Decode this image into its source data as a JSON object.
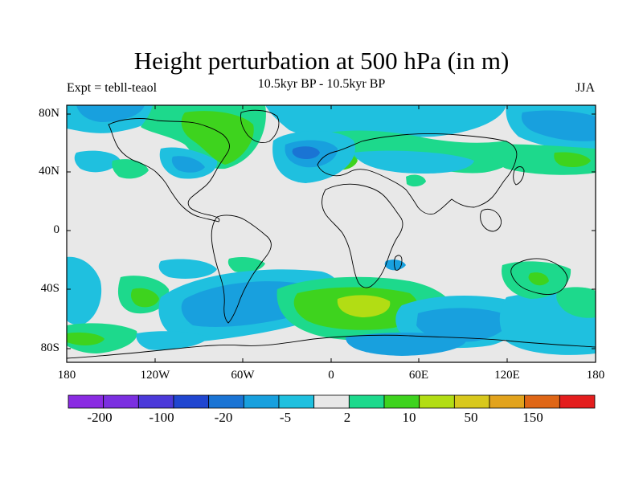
{
  "title": "Height perturbation at 500 hPa (in m)",
  "subtitle": "10.5kyr BP - 10.5kyr BP",
  "left_string": "Expt = tebll-teaol",
  "right_string": "JJA",
  "y_axis": {
    "ticks": [
      "80N",
      "40N",
      "0",
      "40S",
      "80S"
    ]
  },
  "x_axis": {
    "ticks": [
      "180",
      "120W",
      "60W",
      "0",
      "60E",
      "120E",
      "180"
    ]
  },
  "colorbar": {
    "colors": [
      "#8a2be2",
      "#7b2fe0",
      "#4b39d9",
      "#2046d0",
      "#1a74d4",
      "#18a0de",
      "#1fc0df",
      "#e8e8e8",
      "#1dd98c",
      "#3ed31e",
      "#b2dd14",
      "#d8c81d",
      "#e2a31d",
      "#df6616",
      "#e41e1e"
    ],
    "labels": [
      "-200",
      "-100",
      "-20",
      "-5",
      "2",
      "10",
      "50",
      "150"
    ]
  },
  "colors": {
    "background": "#e8e8e8",
    "blue": "#18a0de",
    "cyan": "#1fc0df",
    "green_light": "#1dd98c",
    "green": "#3ed31e",
    "yellow_green": "#b2dd14",
    "dark_blue": "#1a74d4"
  }
}
